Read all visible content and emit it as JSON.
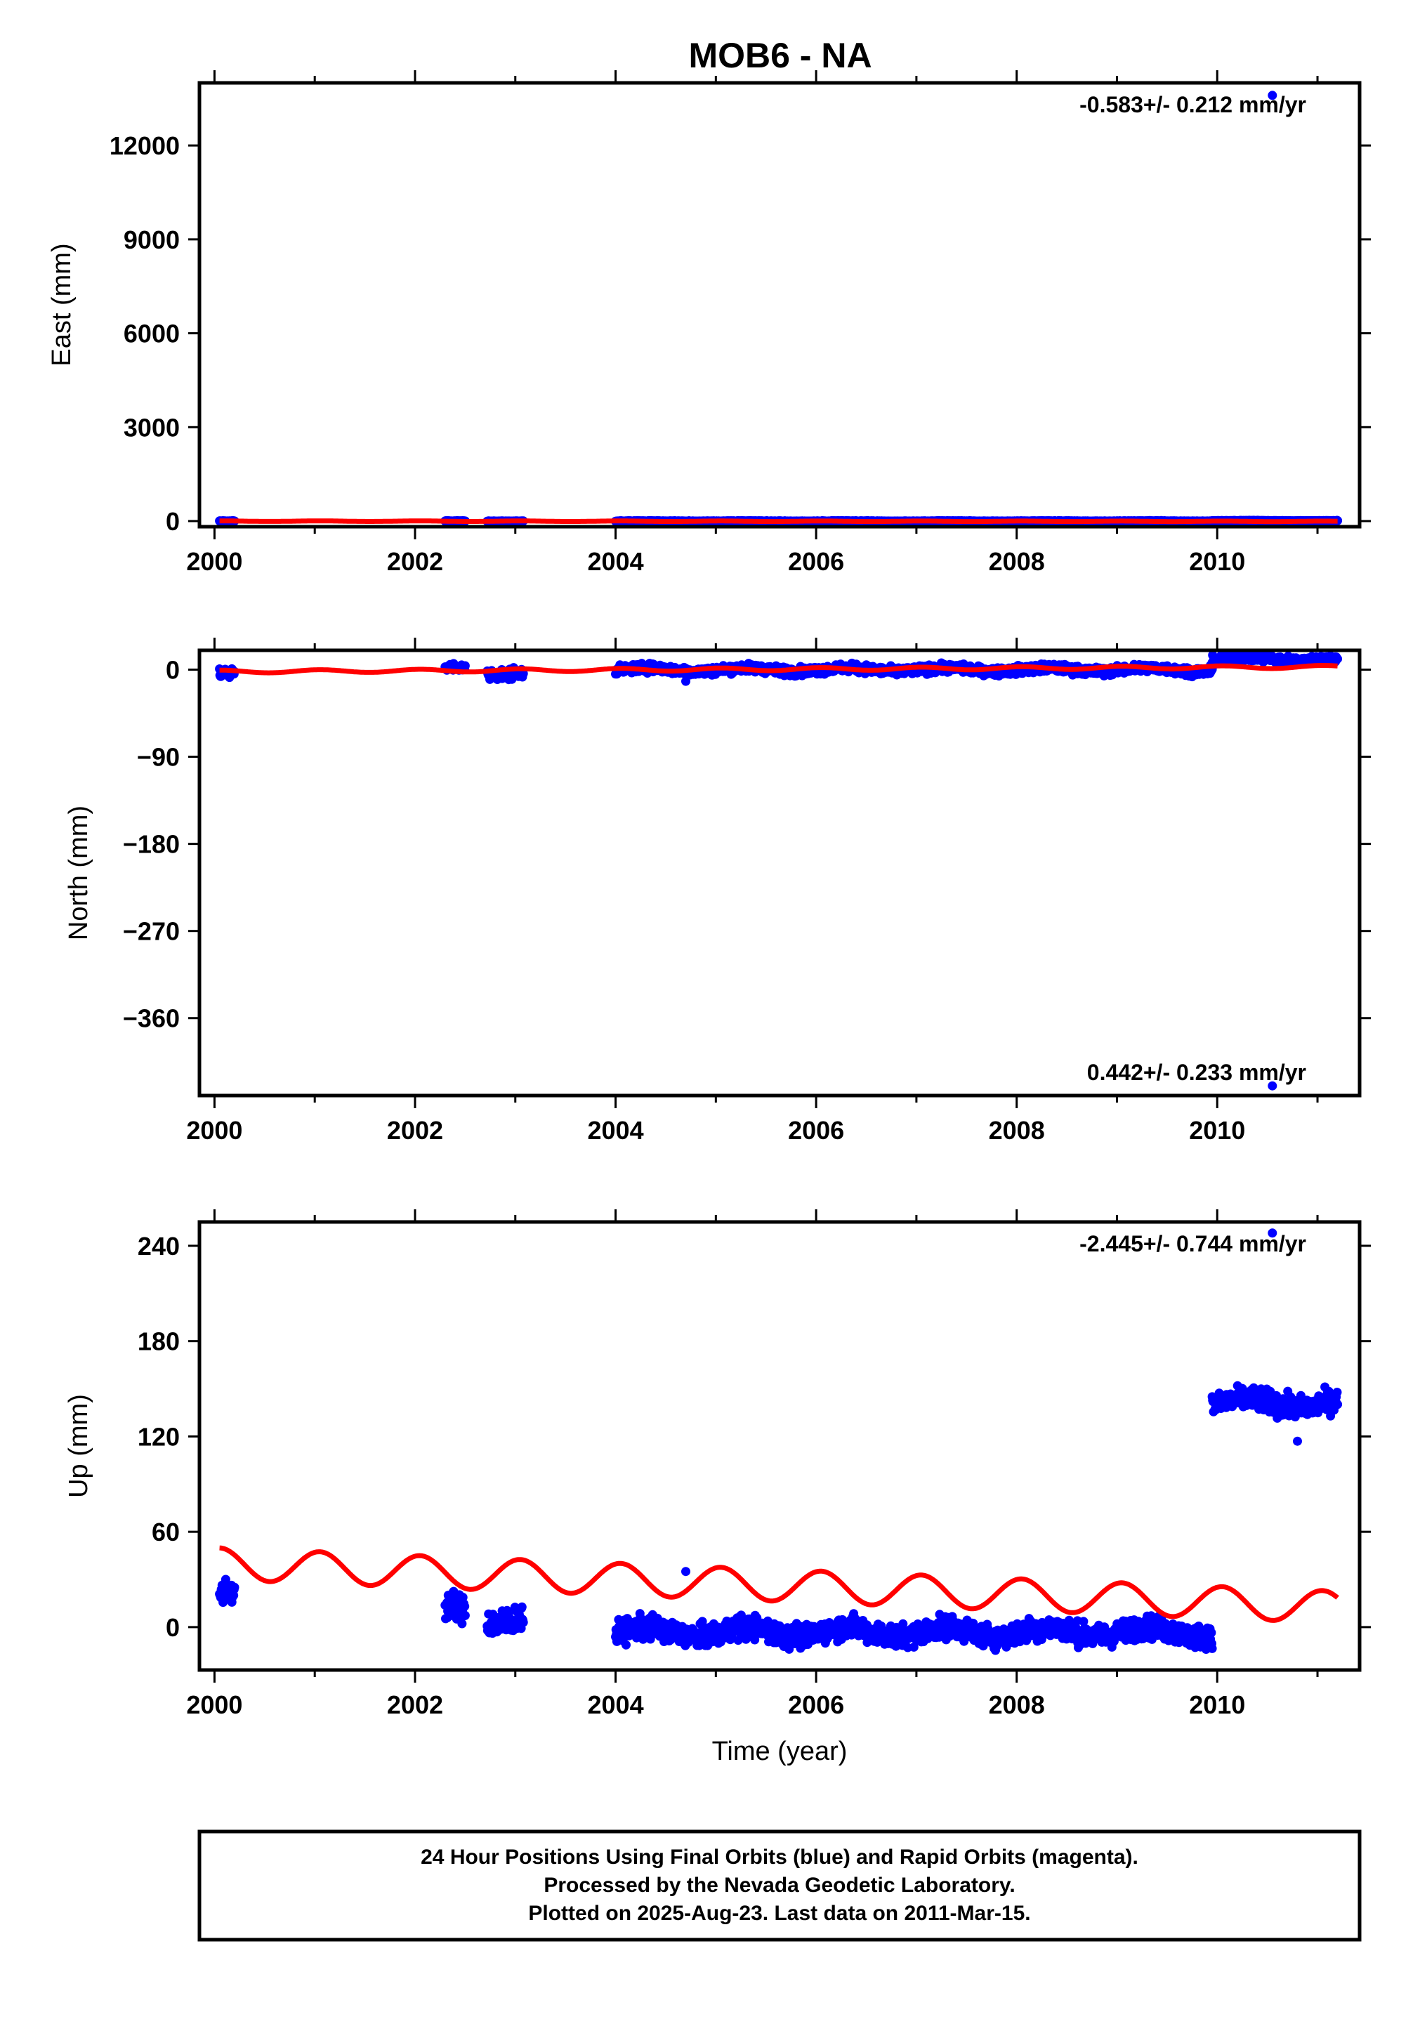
{
  "title": "MOB6 - NA",
  "colors": {
    "observations": "#0000ff",
    "model": "#ff0000",
    "frame": "#000000"
  },
  "footer": {
    "line1": "24 Hour Positions Using Final Orbits (blue) and Rapid Orbits (magenta).",
    "line2": "Processed by the Nevada Geodetic Laboratory.",
    "line3": "Plotted on 2025-Aug-23. Last data on 2011-Mar-15."
  },
  "chart_data": [
    {
      "type": "scatter",
      "ylabel": "East (mm)",
      "rate_label": "-0.583+/- 0.212 mm/yr",
      "xlim": [
        1999.85,
        2011.42
      ],
      "ylim": [
        -180,
        14000
      ],
      "xticks": [
        "2000",
        "2002",
        "2004",
        "2006",
        "2008",
        "2010"
      ],
      "yticks": [
        "0",
        "3000",
        "6000",
        "9000",
        "12000"
      ],
      "grid": false,
      "data_segments": [
        {
          "start": 2000.05,
          "end": 2000.2,
          "level": 0,
          "spread": 6
        },
        {
          "start": 2002.3,
          "end": 2002.5,
          "level": 0,
          "spread": 6
        },
        {
          "start": 2002.72,
          "end": 2003.08,
          "level": 0,
          "spread": 6
        },
        {
          "start": 2004.0,
          "end": 2009.95,
          "level": 0,
          "spread": 6
        },
        {
          "start": 2009.95,
          "end": 2011.2,
          "level": 10,
          "spread": 6
        }
      ],
      "outliers": [
        {
          "x": 2010.55,
          "y": 13600
        }
      ],
      "model": {
        "start": 2000.05,
        "end": 2011.2,
        "offset": -2,
        "slope": -0.583,
        "amp": 8,
        "period": 1
      }
    },
    {
      "type": "scatter",
      "ylabel": "North (mm)",
      "rate_label": "0.442+/- 0.233 mm/yr",
      "xlim": [
        1999.85,
        2011.42
      ],
      "ylim": [
        -440,
        20
      ],
      "xticks": [
        "2000",
        "2002",
        "2004",
        "2006",
        "2008",
        "2010"
      ],
      "yticks": [
        "0",
        "−90",
        "−180",
        "−270",
        "−360"
      ],
      "grid": false,
      "data_segments": [
        {
          "start": 2000.05,
          "end": 2000.2,
          "level": -4,
          "spread": 3
        },
        {
          "start": 2002.3,
          "end": 2002.5,
          "level": 1,
          "spread": 3
        },
        {
          "start": 2002.72,
          "end": 2003.08,
          "level": -3,
          "spread": 4
        },
        {
          "start": 2004.0,
          "end": 2009.95,
          "level": 0,
          "spread": 3
        },
        {
          "start": 2009.95,
          "end": 2011.2,
          "level": 11,
          "spread": 3
        }
      ],
      "outliers": [
        {
          "x": 2010.55,
          "y": -430
        },
        {
          "x": 2000.15,
          "y": -8
        },
        {
          "x": 2004.7,
          "y": -12
        }
      ],
      "model": {
        "start": 2000.05,
        "end": 2011.2,
        "offset": -2,
        "slope": 0.442,
        "amp": 1.5,
        "period": 1
      }
    },
    {
      "type": "scatter",
      "ylabel": "Up (mm)",
      "xlabel": "Time (year)",
      "rate_label": "-2.445+/- 0.744 mm/yr",
      "xlim": [
        1999.85,
        2011.42
      ],
      "ylim": [
        -27,
        255
      ],
      "xticks": [
        "2000",
        "2002",
        "2004",
        "2006",
        "2008",
        "2010"
      ],
      "yticks": [
        "0",
        "60",
        "120",
        "180",
        "240"
      ],
      "grid": false,
      "data_segments": [
        {
          "start": 2000.05,
          "end": 2000.2,
          "level": 20,
          "spread": 6
        },
        {
          "start": 2002.3,
          "end": 2002.5,
          "level": 10,
          "spread": 6
        },
        {
          "start": 2002.72,
          "end": 2003.08,
          "level": 6,
          "spread": 6
        },
        {
          "start": 2004.0,
          "end": 2009.95,
          "level": -3,
          "spread": 5
        },
        {
          "start": 2009.95,
          "end": 2011.2,
          "level": 141,
          "spread": 5
        }
      ],
      "outliers": [
        {
          "x": 2010.55,
          "y": 248
        },
        {
          "x": 2010.8,
          "y": 117
        },
        {
          "x": 2004.7,
          "y": 35
        }
      ],
      "model": {
        "start": 2000.05,
        "end": 2011.2,
        "offset": 40,
        "slope": -2.445,
        "amp": 10,
        "period": 1
      }
    }
  ]
}
